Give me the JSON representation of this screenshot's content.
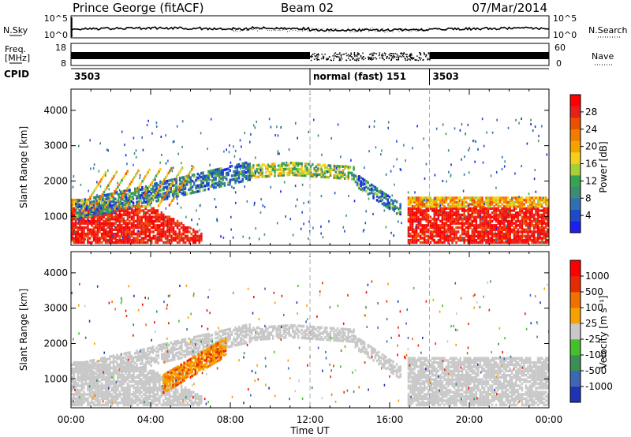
{
  "header": {
    "station": "Prince George (fitACF)",
    "beam": "Beam 02",
    "date": "07/Mar/2014"
  },
  "strip": {
    "nsky_label": "N.Sky",
    "nsky_ticks": [
      "10^5",
      "10^0"
    ],
    "nsearch_label": "N.Search",
    "nsearch_ticks": [
      "10^5",
      "10^0"
    ],
    "freq_label": "Freq.",
    "freq_unit": "[MHz]",
    "freq_ticks": [
      "18",
      "8"
    ],
    "nave_label": "Nave",
    "nave_ticks": [
      "60",
      "0"
    ],
    "cpid_label": "CPID",
    "cpid_segments": [
      {
        "label": "3503",
        "start": 0,
        "end": 12
      },
      {
        "label": "normal (fast) 151",
        "start": 12,
        "end": 18
      },
      {
        "label": "3503",
        "start": 18,
        "end": 24
      }
    ]
  },
  "chart_data": [
    {
      "type": "heatmap",
      "name": "power",
      "ylabel": "Slant Range [km]",
      "xlabel": "",
      "ylim": [
        180,
        4600
      ],
      "xlim": [
        0,
        24
      ],
      "yticks": [
        "1000",
        "2000",
        "3000",
        "4000"
      ],
      "colorbar_label": "Power [dB]",
      "colorbar_ticks": [
        "28",
        "24",
        "20",
        "16",
        "12",
        "8",
        "4"
      ],
      "colors": [
        "#1e1ef0",
        "#1c4bc8",
        "#2f6fb5",
        "#3d8a77",
        "#36a34f",
        "#a7cf3a",
        "#f5d01a",
        "#f5a100",
        "#f07d00",
        "#ee4e00",
        "#e8201a",
        "#ff0000"
      ],
      "grid": false
    },
    {
      "type": "heatmap",
      "name": "velocity",
      "ylabel": "Slant Range [km]",
      "xlabel": "Time UT",
      "ylim": [
        180,
        4600
      ],
      "xlim": [
        0,
        24
      ],
      "yticks": [
        "1000",
        "2000",
        "3000",
        "4000"
      ],
      "xticks": [
        "00:00",
        "04:00",
        "08:00",
        "12:00",
        "16:00",
        "20:00",
        "00:00"
      ],
      "colorbar_label": "Velocity [m s⁻¹]",
      "colorbar_ticks": [
        "1000",
        "500",
        "100",
        "25",
        "-25",
        "-100",
        "-500",
        "-1000"
      ],
      "colors": [
        "#1f33b4",
        "#3d66b4",
        "#3a8f57",
        "#43c02a",
        "#c8c8c8",
        "#f5a100",
        "#f07000",
        "#e82a00",
        "#ff0000"
      ],
      "grid": false
    }
  ]
}
